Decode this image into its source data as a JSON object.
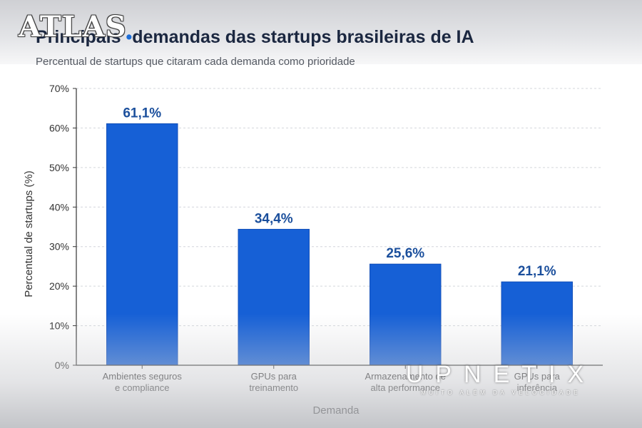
{
  "branding": {
    "top_logo": "ATLAS",
    "watermark": "UPNETIX",
    "watermark_tagline": "MUITO ALÉM DA VELOCIDADE"
  },
  "chart_data": {
    "type": "bar",
    "title_prefix": "Principais",
    "title_rest": "demandas das startups brasileiras de IA",
    "subtitle": "Percentual de startups que citaram cada demanda como prioridade",
    "xlabel": "Demanda",
    "ylabel": "Percentual de startups (%)",
    "ylim": [
      0,
      70
    ],
    "yticks": [
      0,
      10,
      20,
      30,
      40,
      50,
      60,
      70
    ],
    "ytick_labels": [
      "0%",
      "10%",
      "20%",
      "30%",
      "40%",
      "50%",
      "60%",
      "70%"
    ],
    "categories": [
      [
        "Ambientes seguros",
        "e compliance"
      ],
      [
        "GPUs para",
        "treinamento"
      ],
      [
        "Armazenamento de",
        "alta performance"
      ],
      [
        "GPUs para",
        "inferência"
      ]
    ],
    "values": [
      61.1,
      34.4,
      25.6,
      21.1
    ],
    "value_labels": [
      "61,1%",
      "34,4%",
      "25,6%",
      "21,1%"
    ],
    "grid": true,
    "colors": {
      "bar": "#1660d6",
      "bar_edge": "#0d47b0",
      "value_label": "#1b4f9c",
      "grid": "#d3d6db",
      "axis": "#333333",
      "text": "#333333"
    }
  }
}
